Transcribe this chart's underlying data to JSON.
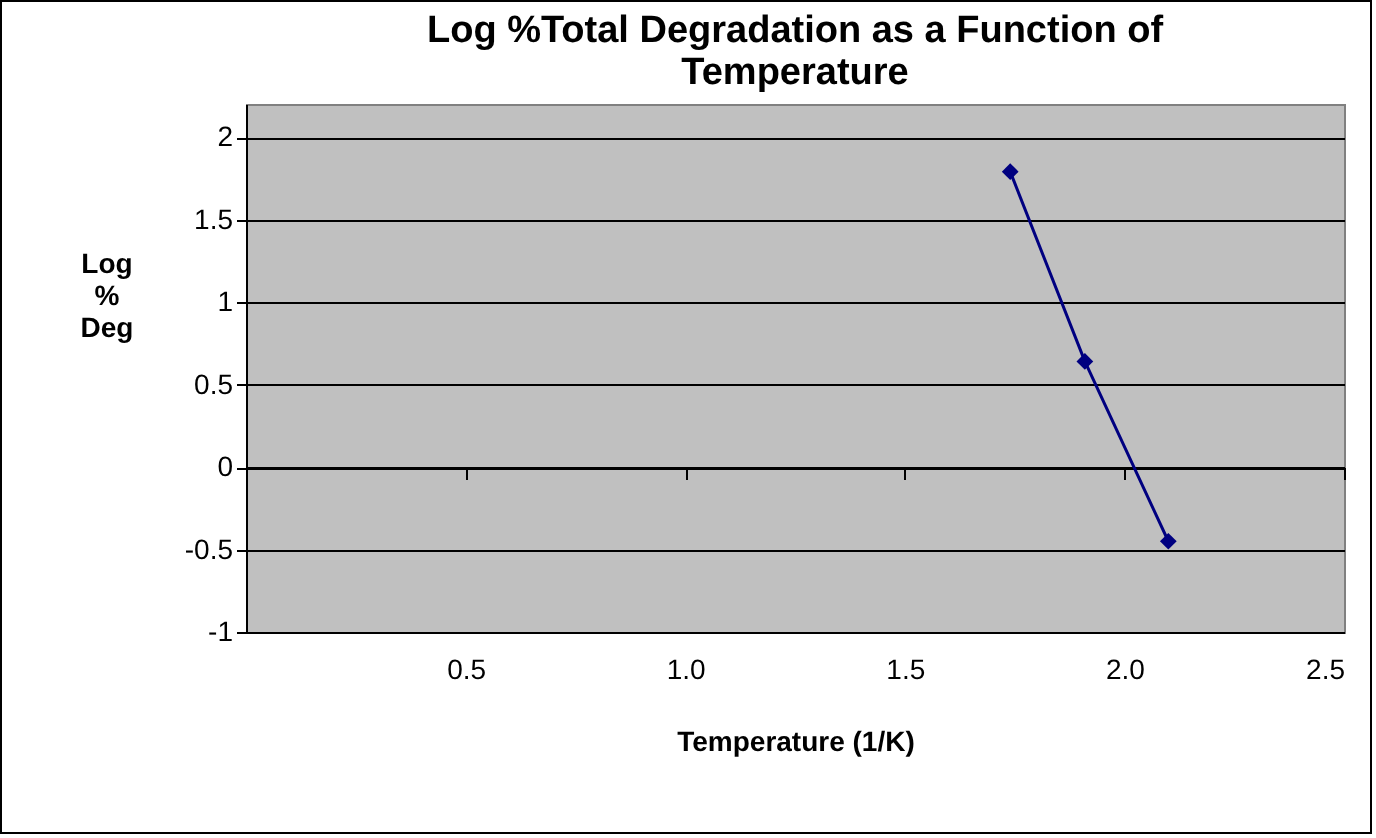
{
  "chart_data": {
    "type": "line",
    "title": "Log %Total Degradation as a Function of Temperature",
    "xlabel": "Temperature (1/K)",
    "ylabel": "Log % Deg",
    "x": [
      1.74,
      1.91,
      2.1
    ],
    "series": [
      {
        "color": "#000080",
        "values": [
          1.79,
          0.64,
          -0.45
        ]
      }
    ],
    "xlim": [
      0,
      2.5
    ],
    "xticks": [
      {
        "value": 0.5,
        "label": "0.5"
      },
      {
        "value": 1,
        "label": "1.0"
      },
      {
        "value": 1.5,
        "label": "1.5"
      },
      {
        "value": 2,
        "label": "2.0"
      },
      {
        "value": 2.5,
        "label": "2.5"
      }
    ],
    "ylim": [
      -1,
      2.2
    ],
    "yticks": [
      -1,
      -0.5,
      0,
      0.5,
      1,
      1.5,
      2
    ],
    "grid": "y",
    "marker": "diamond",
    "line_style": "solid",
    "legend": false
  }
}
